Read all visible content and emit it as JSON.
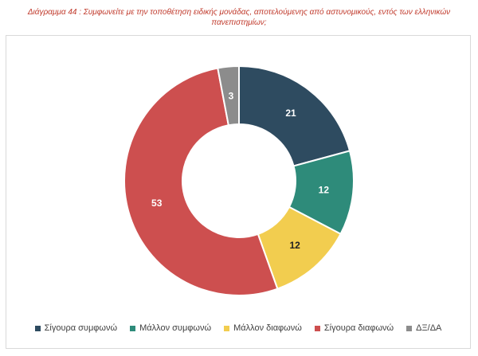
{
  "title": "Διάγραμμα 44 : Συμφωνείτε με την τοποθέτηση ειδικής μονάδας, αποτελούμενης από αστυνομικούς, εντός των ελληνικών πανεπιστημίων;",
  "chart_data": {
    "type": "pie",
    "donut": true,
    "title": "Διάγραμμα 44 : Συμφωνείτε με την τοποθέτηση ειδικής μονάδας, αποτελούμενης από αστυνομικούς, εντός των ελληνικών πανεπιστημίων;",
    "categories": [
      "Σίγουρα συμφωνώ",
      "Μάλλον συμφωνώ",
      "Μάλλον διαφωνώ",
      "Σίγουρα διαφωνώ",
      "ΔΞ/ΔΑ"
    ],
    "values": [
      21,
      12,
      12,
      53,
      3
    ],
    "colors": [
      "#2e4b60",
      "#2e8b7a",
      "#f2cd4f",
      "#cd4f4f",
      "#8c8c8c"
    ],
    "label_colors": [
      "#ffffff",
      "#ffffff",
      "#222222",
      "#ffffff",
      "#ffffff"
    ],
    "legend_position": "bottom"
  }
}
